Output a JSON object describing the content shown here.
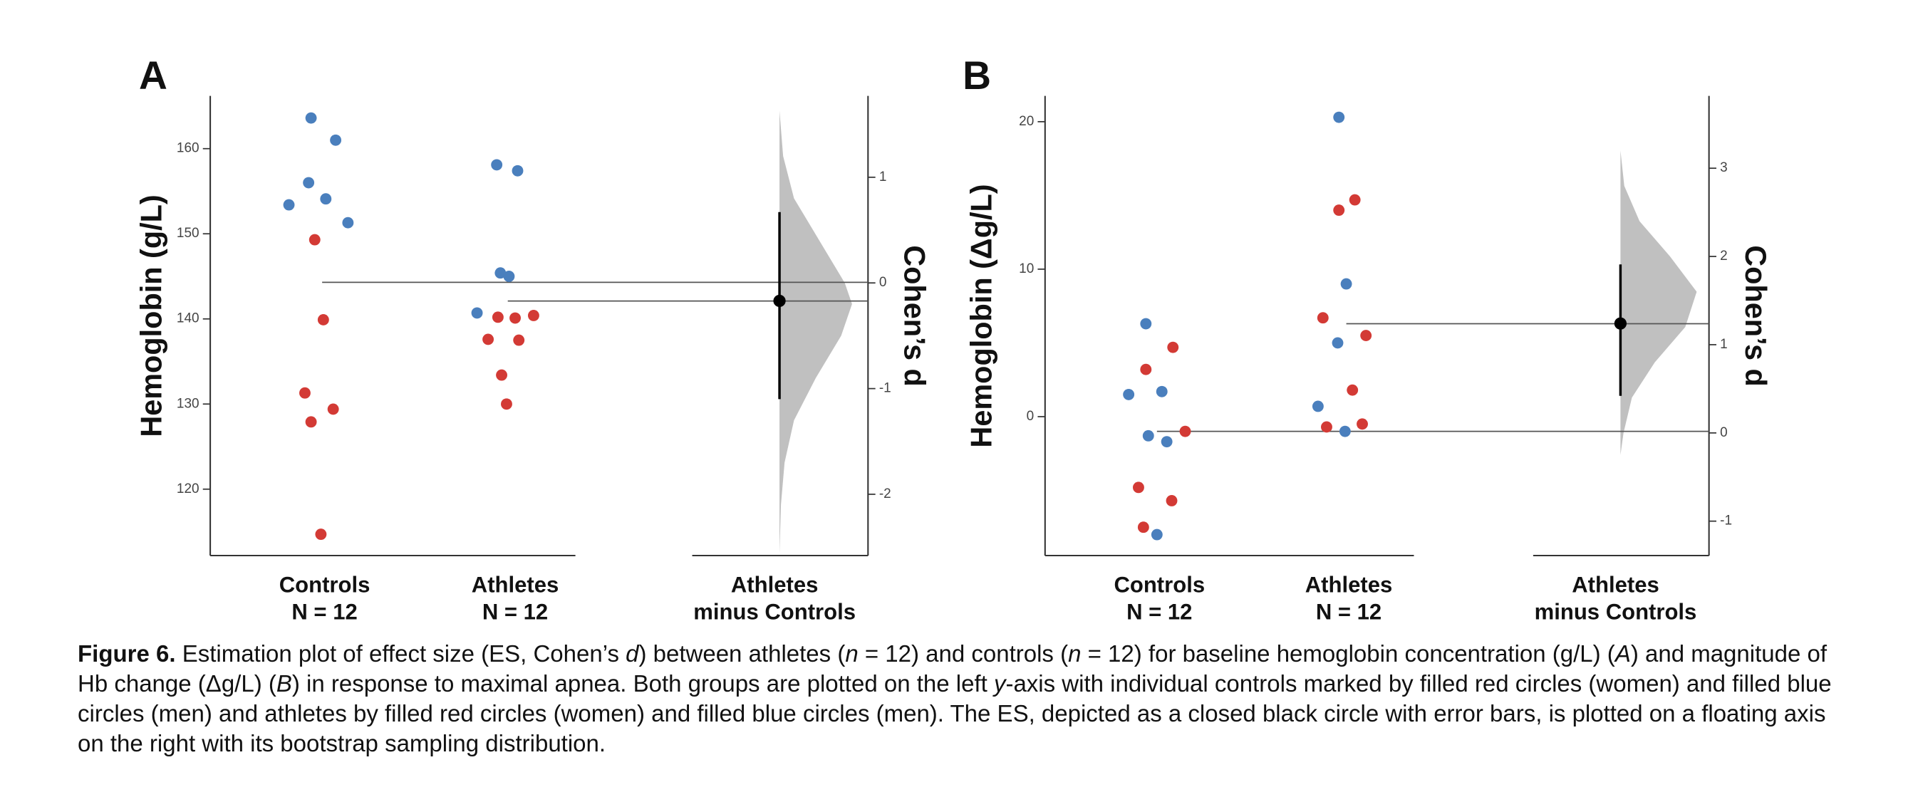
{
  "chart_data": [
    {
      "type": "estimation",
      "label": "A",
      "ylabel": "Hemoglobin (g/L)",
      "y2label": "Cohen’s d",
      "categories": [
        "Controls",
        "Athletes"
      ],
      "group_sizes": [
        "N = 12",
        "N = 12"
      ],
      "diff_label": [
        "Athletes",
        "minus Controls"
      ],
      "groups": [
        {
          "values": [
            163.6,
            161.0,
            156.0,
            154.1,
            153.4,
            151.3,
            149.3,
            139.9,
            131.3,
            129.4,
            127.9,
            114.7
          ],
          "colors": [
            "#4a7fbd",
            "#4a7fbd",
            "#4a7fbd",
            "#4a7fbd",
            "#4a7fbd",
            "#4a7fbd",
            "#d33a35",
            "#d33a35",
            "#d33a35",
            "#d33a35",
            "#d33a35",
            "#d33a35"
          ]
        },
        {
          "values": [
            158.1,
            157.4,
            145.4,
            145.0,
            140.7,
            140.2,
            140.1,
            140.4,
            137.6,
            137.5,
            133.4,
            130.0
          ],
          "colors": [
            "#4a7fbd",
            "#4a7fbd",
            "#4a7fbd",
            "#4a7fbd",
            "#4a7fbd",
            "#d33a35",
            "#d33a35",
            "#d33a35",
            "#d33a35",
            "#d33a35",
            "#d33a35",
            "#d33a35"
          ]
        }
      ],
      "means": [
        144.3,
        142.1
      ],
      "effect": -0.17,
      "ci": [
        -1.1,
        0.67
      ],
      "density": {
        "y": [
          1.63,
          1.2,
          0.8,
          0.4,
          0.0,
          -0.2,
          -0.5,
          -0.9,
          -1.3,
          -1.7,
          -2.1,
          -2.56
        ],
        "values": [
          0,
          0.05,
          0.2,
          0.55,
          0.9,
          1.0,
          0.85,
          0.5,
          0.2,
          0.07,
          0.02,
          0
        ],
        "color": "#c0c0c0"
      },
      "ylim": [
        112.2,
        166.2
      ],
      "yticks": [
        120,
        130,
        140,
        150,
        160
      ],
      "y2lim": [
        -2.58,
        1.77
      ],
      "y2ticks": [
        -2,
        -1,
        0,
        1
      ]
    },
    {
      "type": "estimation",
      "label": "B",
      "ylabel": "Hemoglobin (Δg/L)",
      "y2label": "Cohen’s d",
      "categories": [
        "Controls",
        "Athletes"
      ],
      "group_sizes": [
        "N = 12",
        "N = 12"
      ],
      "diff_label": [
        "Athletes",
        "minus Controls"
      ],
      "groups": [
        {
          "values": [
            6.3,
            1.5,
            1.7,
            -1.3,
            -1.7,
            -8.0,
            4.7,
            3.2,
            -1.0,
            -4.8,
            -5.7,
            -7.5
          ],
          "colors": [
            "#4a7fbd",
            "#4a7fbd",
            "#4a7fbd",
            "#4a7fbd",
            "#4a7fbd",
            "#4a7fbd",
            "#d33a35",
            "#d33a35",
            "#d33a35",
            "#d33a35",
            "#d33a35",
            "#d33a35"
          ]
        },
        {
          "values": [
            20.3,
            9.0,
            5.0,
            0.7,
            -1.0,
            14.7,
            14.0,
            6.7,
            5.5,
            1.8,
            -0.7,
            -0.5
          ],
          "colors": [
            "#4a7fbd",
            "#4a7fbd",
            "#4a7fbd",
            "#4a7fbd",
            "#4a7fbd",
            "#d33a35",
            "#d33a35",
            "#d33a35",
            "#d33a35",
            "#d33a35",
            "#d33a35",
            "#d33a35"
          ]
        }
      ],
      "means": [
        -1.0,
        6.3
      ],
      "effect": 1.24,
      "ci": [
        0.42,
        1.91
      ],
      "density": {
        "y": [
          3.2,
          2.8,
          2.4,
          2.0,
          1.6,
          1.2,
          0.8,
          0.4,
          0.0,
          -0.25
        ],
        "values": [
          0,
          0.05,
          0.25,
          0.65,
          1.0,
          0.85,
          0.45,
          0.15,
          0.04,
          0
        ],
        "color": "#c0c0c0"
      },
      "ylim": [
        -9.42,
        21.75
      ],
      "yticks": [
        0,
        10,
        20
      ],
      "y2lim": [
        -1.39,
        3.82
      ],
      "y2ticks": [
        -1,
        0,
        1,
        2,
        3
      ]
    }
  ],
  "caption": {
    "label": "Figure 6.",
    "parts": [
      {
        "text": " Estimation plot of effect size (ES, Cohen’s "
      },
      {
        "text": "d",
        "italic": true
      },
      {
        "text": ") between athletes ("
      },
      {
        "text": "n",
        "italic": true
      },
      {
        "text": " = 12) and controls ("
      },
      {
        "text": "n",
        "italic": true
      },
      {
        "text": " = 12) for baseline hemoglobin concentration (g/L) ("
      },
      {
        "text": "A",
        "italic": true
      },
      {
        "text": ") and magnitude of Hb change (Δg/L) ("
      },
      {
        "text": "B",
        "italic": true
      },
      {
        "text": ") in response to maximal apnea. Both groups are plotted on the left "
      },
      {
        "text": "y",
        "italic": true
      },
      {
        "text": "-axis with individual controls marked by filled red circles (women) and filled blue circles (men) and athletes by filled red circles (women) and filled blue circles (men). The ES, depicted as a closed black circle with error bars, is plotted on a floating axis on the right with its bootstrap sampling distribution."
      }
    ]
  }
}
